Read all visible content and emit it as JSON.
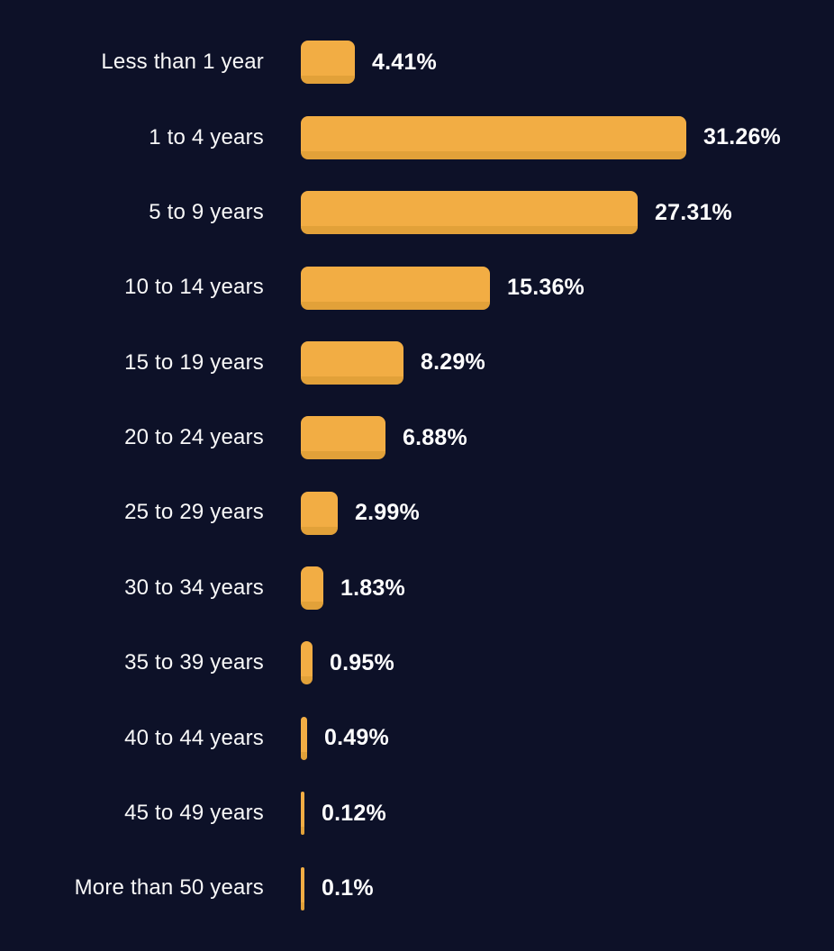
{
  "colors": {
    "background": "#0d1128",
    "bar": "#f2ad44",
    "bar_bottom_shadow": "#e2a139",
    "label_text": "#f8f8f8",
    "value_text": "#ffffff"
  },
  "chart_data": {
    "type": "bar",
    "orientation": "horizontal",
    "title": "",
    "xlabel": "",
    "ylabel": "",
    "value_unit": "%",
    "axis_range": [
      0,
      31.26
    ],
    "grid": false,
    "legend": false,
    "categories": [
      "Less than 1 year",
      "1 to 4 years",
      "5 to 9 years",
      "10 to 14 years",
      "15 to 19 years",
      "20 to 24 years",
      "25 to 29 years",
      "30 to 34 years",
      "35 to 39 years",
      "40 to 44 years",
      "45 to 49 years",
      "More than 50 years"
    ],
    "values": [
      4.41,
      31.26,
      27.31,
      15.36,
      8.29,
      6.88,
      2.99,
      1.83,
      0.95,
      0.49,
      0.12,
      0.1
    ],
    "value_labels": [
      "4.41%",
      "31.26%",
      "27.31%",
      "15.36%",
      "8.29%",
      "6.88%",
      "2.99%",
      "1.83%",
      "0.95%",
      "0.49%",
      "0.12%",
      "0.1%"
    ]
  }
}
